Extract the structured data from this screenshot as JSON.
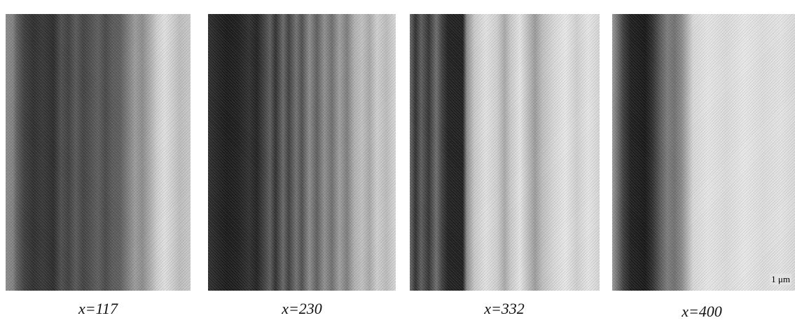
{
  "panels": [
    {
      "label": "x=117"
    },
    {
      "label": "x=230"
    },
    {
      "label": "x=332"
    },
    {
      "label": "x=400"
    }
  ],
  "scale_bar": "1 μm"
}
